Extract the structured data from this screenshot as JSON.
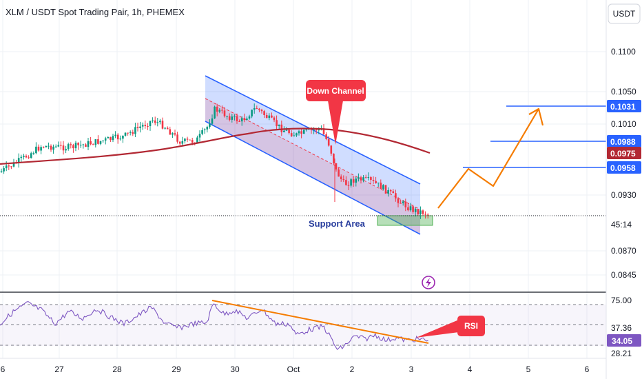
{
  "chart_data": {
    "type": "candlestick",
    "title": "XLM / USDT Spot Trading Pair, 1h, PHEMEX",
    "currency_label": "USDT",
    "x_ticks": [
      "6",
      "27",
      "28",
      "29",
      "30",
      "Oct",
      "2",
      "3",
      "4",
      "5",
      "6"
    ],
    "price_axis": {
      "ticks": [
        "0.1100",
        "0.1050",
        "0.1010",
        "0.0930",
        "0.0870",
        "0.0845"
      ],
      "ylim": [
        0.0825,
        0.1135
      ]
    },
    "price_badges": [
      {
        "value": "0.1031",
        "color": "#2962ff"
      },
      {
        "value": "0.0988",
        "color": "#2962ff"
      },
      {
        "value": "0.0975",
        "color": "#b22833"
      },
      {
        "value": "0.0958",
        "color": "#2962ff"
      },
      {
        "value": "0.0906",
        "color": "#ffffff",
        "text_color": "#131722"
      }
    ],
    "countdown": "45:14",
    "annotations": {
      "down_channel": "Down Channel",
      "support_area": "Support Area",
      "rsi_label": "RSI"
    },
    "target_levels": [
      0.1031,
      0.0988,
      0.0958
    ],
    "current_price": 0.0906,
    "projected_path": [
      0.0906,
      0.0958,
      0.094,
      0.1031,
      0.101
    ],
    "colors": {
      "up": "#089981",
      "down": "#f23645",
      "ma": "#b22833",
      "channel": "#2962ff",
      "projection": "#f57c00",
      "rsi": "#7e57c2",
      "support": "#4caf50"
    },
    "rsi_axis": {
      "ticks": [
        "75.00",
        "37.36",
        "28.21"
      ],
      "current": "34.05"
    }
  }
}
